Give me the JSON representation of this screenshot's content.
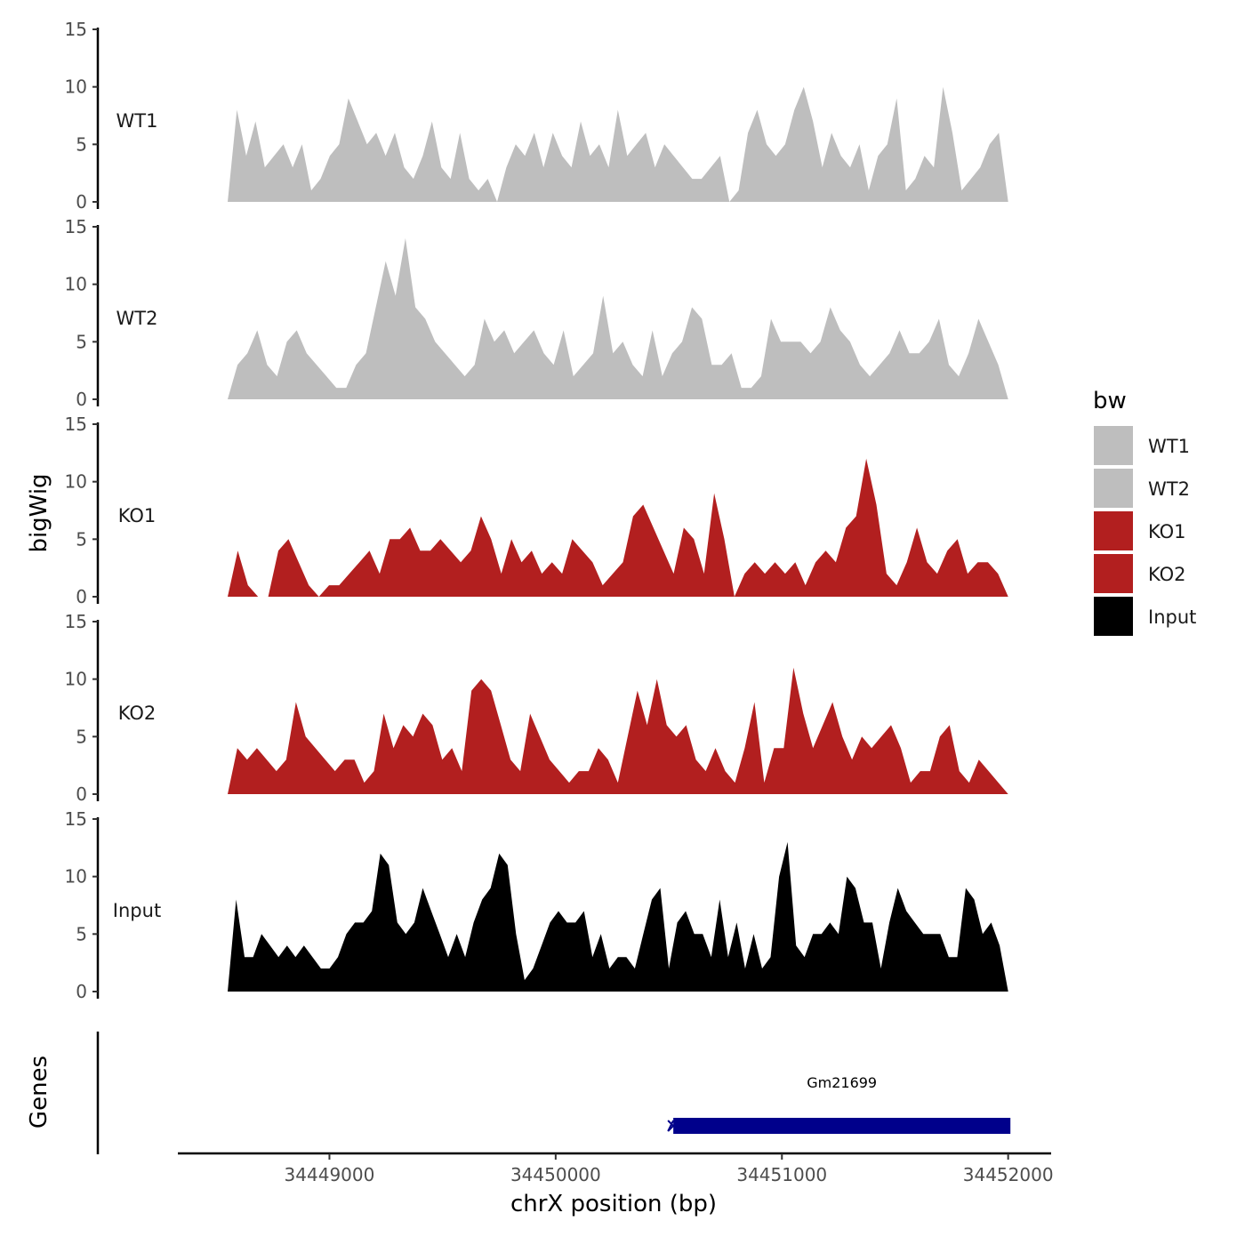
{
  "chart_data": {
    "type": "area",
    "ylabel": "bigWig",
    "xlabel": "chrX position (bp)",
    "ylim": [
      0,
      15
    ],
    "yticks": [
      0,
      5,
      10,
      15
    ],
    "xlim": [
      34448330,
      34452190
    ],
    "xticks": [
      34449000,
      34450000,
      34451000,
      34452000
    ],
    "xtick_labels": [
      "34449000",
      "34450000",
      "34451000",
      "34452000"
    ],
    "x_start": 34448550,
    "x_end": 34452000,
    "legend": {
      "title": "bw",
      "position": "right",
      "entries": [
        {
          "label": "WT1",
          "color": "#bebebe"
        },
        {
          "label": "WT2",
          "color": "#bebebe"
        },
        {
          "label": "KO1",
          "color": "#b21f1f"
        },
        {
          "label": "KO2",
          "color": "#b21f1f"
        },
        {
          "label": "Input",
          "color": "#000000"
        }
      ]
    },
    "series": [
      {
        "name": "WT1",
        "color": "#bebebe",
        "values": [
          0,
          8,
          4,
          7,
          3,
          4,
          5,
          3,
          5,
          1,
          2,
          4,
          5,
          9,
          7,
          5,
          6,
          4,
          6,
          3,
          2,
          4,
          7,
          3,
          2,
          6,
          2,
          1,
          2,
          0,
          3,
          5,
          4,
          6,
          3,
          6,
          4,
          3,
          7,
          4,
          5,
          3,
          8,
          4,
          5,
          6,
          3,
          5,
          4,
          3,
          2,
          2,
          3,
          4,
          0,
          1,
          6,
          8,
          5,
          4,
          5,
          8,
          10,
          7,
          3,
          6,
          4,
          3,
          5,
          1,
          4,
          5,
          9,
          1,
          2,
          4,
          3,
          10,
          6,
          1,
          2,
          3,
          5,
          6,
          0
        ]
      },
      {
        "name": "WT2",
        "color": "#bebebe",
        "values": [
          0,
          3,
          4,
          6,
          3,
          2,
          5,
          6,
          4,
          3,
          2,
          1,
          1,
          3,
          4,
          8,
          12,
          9,
          14,
          8,
          7,
          5,
          4,
          3,
          2,
          3,
          7,
          5,
          6,
          4,
          5,
          6,
          4,
          3,
          6,
          2,
          3,
          4,
          9,
          4,
          5,
          3,
          2,
          6,
          2,
          4,
          5,
          8,
          7,
          3,
          3,
          4,
          1,
          1,
          2,
          7,
          5,
          5,
          5,
          4,
          5,
          8,
          6,
          5,
          3,
          2,
          3,
          4,
          6,
          4,
          4,
          5,
          7,
          3,
          2,
          4,
          7,
          5,
          3,
          0
        ]
      },
      {
        "name": "KO1",
        "color": "#b21f1f",
        "values": [
          0,
          4,
          1,
          0,
          0,
          4,
          5,
          3,
          1,
          0,
          1,
          1,
          2,
          3,
          4,
          2,
          5,
          5,
          6,
          4,
          4,
          5,
          4,
          3,
          4,
          7,
          5,
          2,
          5,
          3,
          4,
          2,
          3,
          2,
          5,
          4,
          3,
          1,
          2,
          3,
          7,
          8,
          6,
          4,
          2,
          6,
          5,
          2,
          9,
          5,
          0,
          2,
          3,
          2,
          3,
          2,
          3,
          1,
          3,
          4,
          3,
          6,
          7,
          12,
          8,
          2,
          1,
          3,
          6,
          3,
          2,
          4,
          5,
          2,
          3,
          3,
          2,
          0
        ]
      },
      {
        "name": "KO2",
        "color": "#b21f1f",
        "values": [
          0,
          4,
          3,
          4,
          3,
          2,
          3,
          8,
          5,
          4,
          3,
          2,
          3,
          3,
          1,
          2,
          7,
          4,
          6,
          5,
          7,
          6,
          3,
          4,
          2,
          9,
          10,
          9,
          6,
          3,
          2,
          7,
          5,
          3,
          2,
          1,
          2,
          2,
          4,
          3,
          1,
          5,
          9,
          6,
          10,
          6,
          5,
          6,
          3,
          2,
          4,
          2,
          1,
          4,
          8,
          1,
          4,
          4,
          11,
          7,
          4,
          6,
          8,
          5,
          3,
          5,
          4,
          5,
          6,
          4,
          1,
          2,
          2,
          5,
          6,
          2,
          1,
          3,
          2,
          1,
          0
        ]
      },
      {
        "name": "Input",
        "color": "#000000",
        "values": [
          0,
          8,
          3,
          3,
          5,
          4,
          3,
          4,
          3,
          4,
          3,
          2,
          2,
          3,
          5,
          6,
          6,
          7,
          12,
          11,
          6,
          5,
          6,
          9,
          7,
          5,
          3,
          5,
          3,
          6,
          8,
          9,
          12,
          11,
          5,
          1,
          2,
          4,
          6,
          7,
          6,
          6,
          7,
          3,
          5,
          2,
          3,
          3,
          2,
          5,
          8,
          9,
          2,
          6,
          7,
          5,
          5,
          3,
          8,
          3,
          6,
          2,
          5,
          2,
          3,
          10,
          13,
          4,
          3,
          5,
          5,
          6,
          5,
          10,
          9,
          6,
          6,
          2,
          6,
          9,
          7,
          6,
          5,
          5,
          5,
          3,
          3,
          9,
          8,
          5,
          6,
          4,
          0
        ]
      }
    ],
    "genes": {
      "label": "Genes",
      "items": [
        {
          "name": "Gm21699",
          "start": 34450520,
          "end": 34452010,
          "strand": "+",
          "color": "#00008b"
        }
      ]
    }
  }
}
